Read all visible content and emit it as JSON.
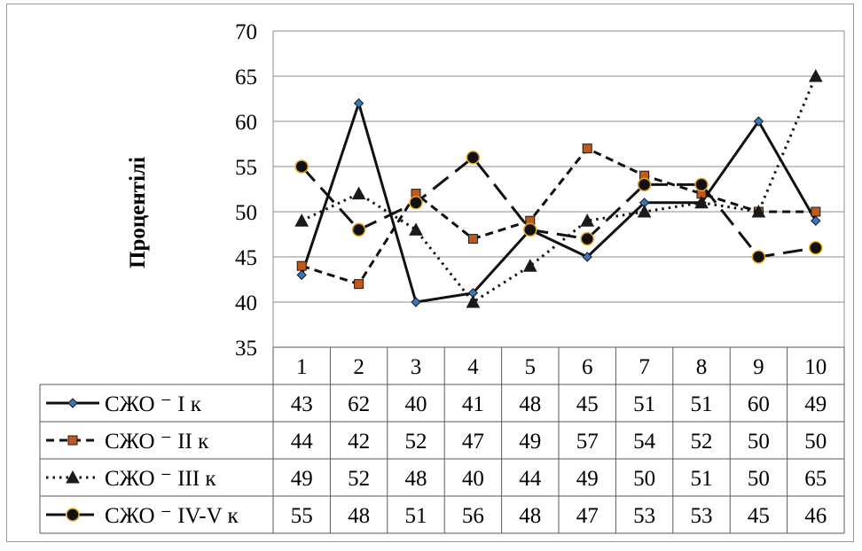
{
  "chart_data": {
    "type": "line",
    "ylabel": "Процентілі",
    "ylim": [
      35,
      70
    ],
    "yticks": [
      35,
      40,
      45,
      50,
      55,
      60,
      65,
      70
    ],
    "categories": [
      "1",
      "2",
      "3",
      "4",
      "5",
      "6",
      "7",
      "8",
      "9",
      "10"
    ],
    "grid": true,
    "data_table": true,
    "series": [
      {
        "name": "СЖО ⁻ I к",
        "values": [
          43,
          62,
          40,
          41,
          48,
          45,
          51,
          51,
          60,
          49
        ],
        "line": "solid",
        "marker": "diamond",
        "marker_color": "#3b76b8"
      },
      {
        "name": "СЖО ⁻ II к",
        "values": [
          44,
          42,
          52,
          47,
          49,
          57,
          54,
          52,
          50,
          50
        ],
        "line": "short-dash",
        "marker": "square",
        "marker_color": "#c05a1c"
      },
      {
        "name": "СЖО ⁻ III к",
        "values": [
          49,
          52,
          48,
          40,
          44,
          49,
          50,
          51,
          50,
          65
        ],
        "line": "dotted",
        "marker": "triangle",
        "marker_color": "#1a1a1a"
      },
      {
        "name": "СЖО ⁻ IV-V к",
        "values": [
          55,
          48,
          51,
          56,
          48,
          47,
          53,
          53,
          45,
          46
        ],
        "line": "long-dash",
        "marker": "circle",
        "marker_color": "#e6a920"
      }
    ]
  }
}
